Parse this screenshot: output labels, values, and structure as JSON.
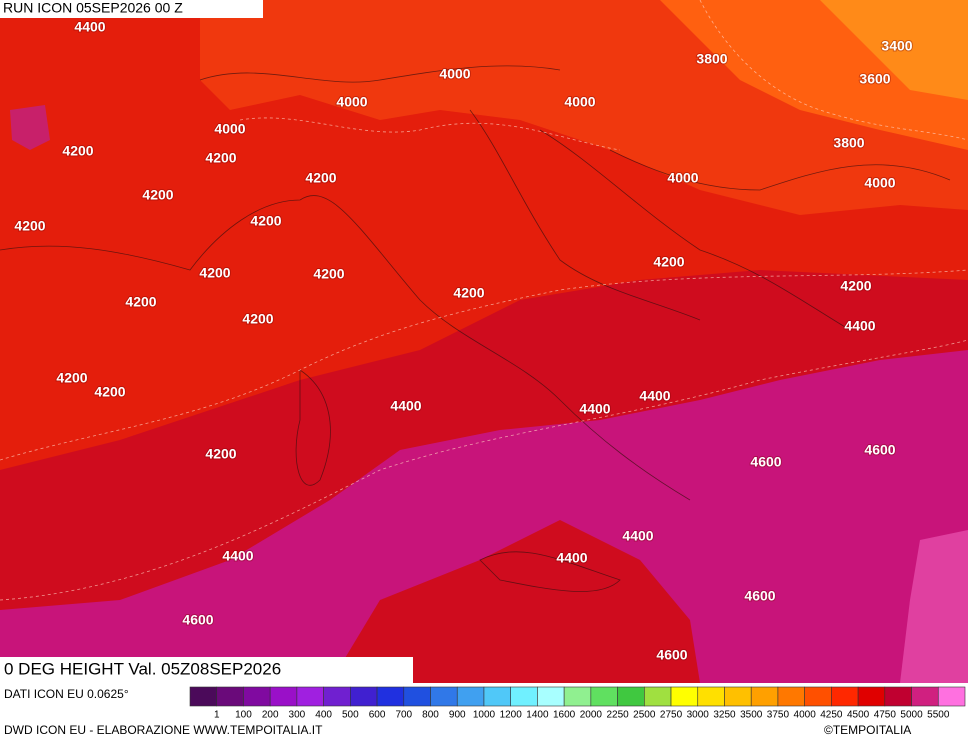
{
  "header": {
    "run": "RUN ICON 05SEP2026 00 Z"
  },
  "map": {
    "title": "0 DEG HEIGHT Val. 05Z08SEP2026",
    "contour_labels": [
      4400,
      4000,
      3800,
      3400,
      3600,
      4000,
      4000,
      4000,
      4200,
      4200,
      3800,
      4200,
      4000,
      4000,
      4200,
      4200,
      4200,
      4200,
      4200,
      4200,
      4200,
      4200,
      4200,
      4200,
      4400,
      4200,
      4200,
      4400,
      4400,
      4400,
      4600,
      4600,
      4200,
      4400,
      4400,
      4400,
      4600,
      4600,
      4600
    ]
  },
  "legend": {
    "source": "DATI ICON EU 0.0625°",
    "levels": [
      1,
      100,
      200,
      300,
      400,
      500,
      600,
      700,
      800,
      900,
      1000,
      1200,
      1400,
      1600,
      2000,
      2250,
      2500,
      2750,
      3000,
      3250,
      3500,
      3750,
      4000,
      4250,
      4500,
      4750,
      5000,
      5500
    ],
    "colors": [
      "#4b0a5a",
      "#6a0a7a",
      "#800aa0",
      "#9a10c8",
      "#a020e0",
      "#7020d0",
      "#4020d0",
      "#2030e0",
      "#2050e0",
      "#3078e8",
      "#40a0f0",
      "#50c8f8",
      "#70f0ff",
      "#a8ffff",
      "#90f090",
      "#60e060",
      "#40c840",
      "#a0e040",
      "#ffff00",
      "#ffe000",
      "#ffc000",
      "#ffa000",
      "#ff7800",
      "#ff5000",
      "#ff2800",
      "#e00000",
      "#c00030",
      "#d02080",
      "#ff70e0"
    ]
  },
  "footer": {
    "credit": "DWD ICON EU - ELABORAZIONE WWW.TEMPOITALIA.IT",
    "brand": "©TEMPOITALIA"
  }
}
